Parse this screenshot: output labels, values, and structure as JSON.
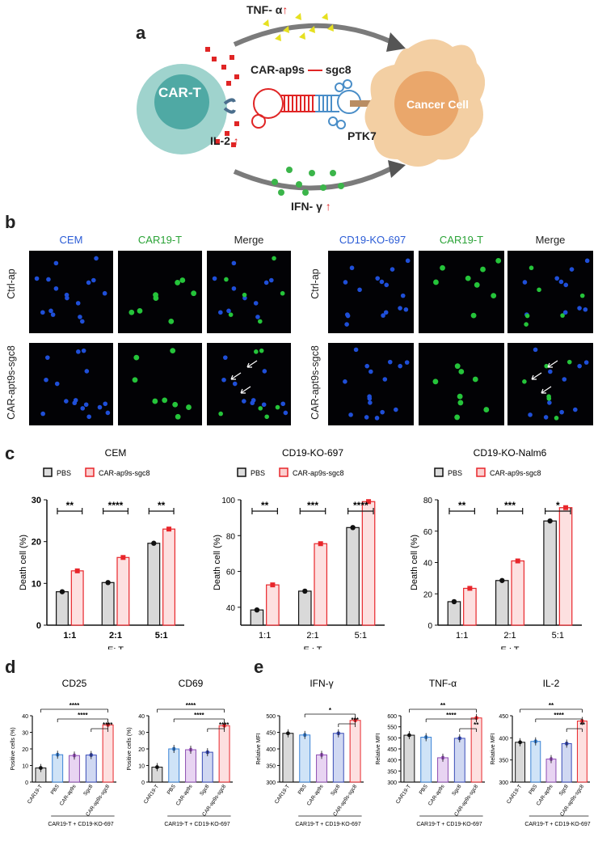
{
  "panels": {
    "a": {
      "label": "a",
      "tnf": "TNF- α",
      "il2": "IL-2",
      "ifn": "IFN- γ",
      "cart": "CAR-T",
      "aptamer": "CAR-ap9s",
      "sgc8": "sgc8",
      "ptk7": "PTK7",
      "cancer": "Cancer Cell"
    },
    "b": {
      "label": "b",
      "left_headers": [
        "CEM",
        "CAR19-T",
        "Merge"
      ],
      "right_headers": [
        "CD19-KO-697",
        "CAR19-T",
        "Merge"
      ],
      "rows": [
        "Ctrl-ap",
        "CAR-apt9s-sgc8"
      ]
    },
    "c": {
      "label": "c"
    },
    "d": {
      "label": "d"
    },
    "e": {
      "label": "e"
    }
  },
  "colors": {
    "blue_channel": "#1f4fd8",
    "green_channel": "#25c43a",
    "pbs": "#111111",
    "treat": "#e8262b"
  },
  "chart_data": [
    {
      "id": "c1",
      "type": "bar",
      "title": "CEM",
      "legend": [
        "PBS",
        "CAR-ap9s-sgc8"
      ],
      "categories": [
        "1:1",
        "2:1",
        "5:1"
      ],
      "xlabel": "E:  T",
      "ylabel": "Death cell  (%)",
      "ylim": [
        0,
        30
      ],
      "yticks": [
        "0",
        "10",
        "20",
        "30"
      ],
      "series": [
        {
          "name": "PBS",
          "values": [
            8.0,
            10.2,
            19.6
          ]
        },
        {
          "name": "CAR-ap9s-sgc8",
          "values": [
            13.0,
            16.2,
            23.0
          ]
        }
      ],
      "significance": [
        "**",
        "****",
        "**"
      ]
    },
    {
      "id": "c2",
      "type": "bar",
      "title": "CD19-KO-697",
      "legend": [
        "PBS",
        "CAR-ap9s-sgc8"
      ],
      "categories": [
        "1:1",
        "2:1",
        "5:1"
      ],
      "xlabel": "E : T",
      "ylabel": "Death cell (%)",
      "ylim": [
        30,
        100
      ],
      "yticks": [
        "40",
        "60",
        "80",
        "100"
      ],
      "series": [
        {
          "name": "PBS",
          "values": [
            38.5,
            49.0,
            84.5
          ]
        },
        {
          "name": "CAR-ap9s-sgc8",
          "values": [
            52.5,
            75.5,
            99.0
          ]
        }
      ],
      "significance": [
        "**",
        "***",
        "****"
      ]
    },
    {
      "id": "c3",
      "type": "bar",
      "title": "CD19-KO-Nalm6",
      "legend": [
        "PBS",
        "CAR-ap9s-sgc8"
      ],
      "categories": [
        "1:1",
        "2:1",
        "5:1"
      ],
      "xlabel": "E : T",
      "ylabel": "Death cell (%)",
      "ylim": [
        0,
        80
      ],
      "yticks": [
        "0",
        "20",
        "40",
        "60",
        "80"
      ],
      "series": [
        {
          "name": "PBS",
          "values": [
            15.0,
            28.5,
            66.5
          ]
        },
        {
          "name": "CAR-ap9s-sgc8",
          "values": [
            23.5,
            41.0,
            75.0
          ]
        }
      ],
      "significance": [
        "**",
        "***",
        "*"
      ]
    },
    {
      "id": "d1",
      "type": "bar",
      "title": "CD25",
      "categories": [
        "CAR19-T",
        "PBS",
        "CAR-ap9s",
        "Sgc8",
        "CAR-ap9s-sgc8"
      ],
      "values": [
        8.5,
        16.5,
        16.0,
        16.3,
        34.5
      ],
      "ylabel": "Positive cells (%)",
      "ylim": [
        0,
        40
      ],
      "yticks": [
        "0",
        "10",
        "20",
        "30",
        "40"
      ],
      "group_label": "CAR19-T + CD19-KO-697",
      "significance": [
        "****",
        "****",
        "****"
      ]
    },
    {
      "id": "d2",
      "type": "bar",
      "title": "CD69",
      "categories": [
        "CAR19-T",
        "PBS",
        "CAR-ap9s",
        "Sgc8",
        "CAR-ap9s-sgc8"
      ],
      "values": [
        9.0,
        20.0,
        19.5,
        18.0,
        34.0
      ],
      "ylabel": "Positive cells (%)",
      "ylim": [
        0,
        40
      ],
      "yticks": [
        "0",
        "10",
        "20",
        "30",
        "40"
      ],
      "group_label": "CAR19-T + CD19-KO-697",
      "significance": [
        "****",
        "****",
        "****"
      ]
    },
    {
      "id": "e1",
      "type": "bar",
      "title": "IFN-γ",
      "categories": [
        "CAR19-T",
        "PBS",
        "CAR-ap9s",
        "Sgc8",
        "CAR-ap9s-sgc8"
      ],
      "values": [
        447,
        442,
        382,
        447,
        486
      ],
      "ylabel": "Relative MFI",
      "ylim": [
        300,
        500
      ],
      "yticks": [
        "300",
        "350",
        "400",
        "450",
        "500"
      ],
      "group_label": "CAR19-T + CD19-KO-697",
      "significance": [
        "*",
        "***"
      ]
    },
    {
      "id": "e2",
      "type": "bar",
      "title": "TNF-α",
      "categories": [
        "CAR19-T",
        "PBS",
        "CAR-ap9s",
        "Sgc8",
        "CAR-ap9s-sgc8"
      ],
      "values": [
        512,
        503,
        410,
        498,
        590
      ],
      "ylabel": "Relative MFI",
      "ylim": [
        300,
        600
      ],
      "yticks": [
        "300",
        "350",
        "400",
        "450",
        "500",
        "550",
        "600"
      ],
      "group_label": "CAR19-T + CD19-KO-697",
      "significance": [
        "**",
        "****",
        "**"
      ]
    },
    {
      "id": "e3",
      "type": "bar",
      "title": "IL-2",
      "categories": [
        "CAR19-T",
        "PBS",
        "CAR-ap9s",
        "Sgc8",
        "CAR-ap9s-sgc8"
      ],
      "values": [
        390,
        392,
        352,
        387,
        438
      ],
      "ylabel": "Relative MFI",
      "ylim": [
        300,
        450
      ],
      "yticks": [
        "300",
        "350",
        "400",
        "450"
      ],
      "group_label": "CAR19-T + CD19-KO-697",
      "significance": [
        "**",
        "****",
        "**"
      ]
    }
  ]
}
